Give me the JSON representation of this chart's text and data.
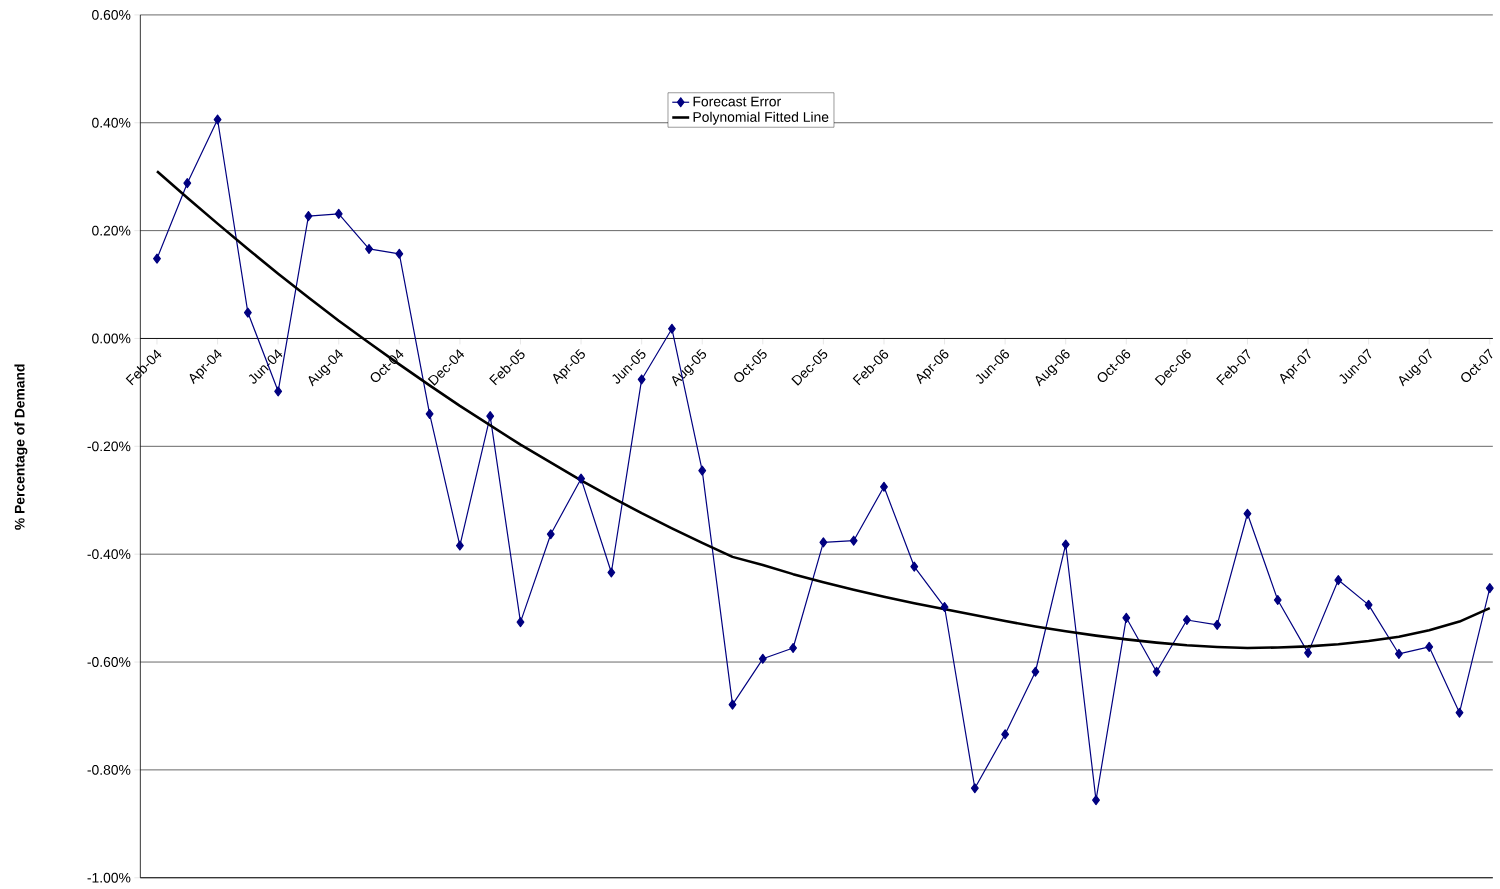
{
  "chart_data": {
    "type": "line",
    "ylabel": "% Percentage of Demand",
    "categories": [
      "Feb-04",
      null,
      "Apr-04",
      null,
      "Jun-04",
      null,
      "Aug-04",
      null,
      "Oct-04",
      null,
      "Dec-04",
      null,
      "Feb-05",
      null,
      "Apr-05",
      null,
      "Jun-05",
      null,
      "Aug-05",
      null,
      "Oct-05",
      null,
      "Dec-05",
      null,
      "Feb-06",
      null,
      "Apr-06",
      null,
      "Jun-06",
      null,
      "Aug-06",
      null,
      "Oct-06",
      null,
      "Dec-06",
      null,
      "Feb-07",
      null,
      "Apr-07",
      null,
      "Jun-07",
      null,
      "Aug-07",
      null,
      "Oct-07"
    ],
    "series": [
      {
        "name": "Forecast Error",
        "color": "#000080",
        "marker": "diamond",
        "values": [
          0.148,
          0.288,
          0.406,
          0.048,
          -0.098,
          0.227,
          0.231,
          0.166,
          0.157,
          -0.14,
          -0.384,
          -0.144,
          -0.526,
          -0.363,
          -0.26,
          -0.434,
          -0.076,
          0.018,
          -0.245,
          -0.679,
          -0.594,
          -0.574,
          -0.378,
          -0.375,
          -0.275,
          -0.423,
          -0.498,
          -0.834,
          -0.734,
          -0.618,
          -0.382,
          -0.856,
          -0.518,
          -0.618,
          -0.522,
          -0.531,
          -0.325,
          -0.485,
          -0.583,
          -0.448,
          -0.494,
          -0.585,
          -0.572,
          -0.694,
          -0.463
        ]
      },
      {
        "name": "Polynomial Fitted Line",
        "color": "#000000",
        "marker": "none",
        "values": [
          0.31,
          0.261,
          0.213,
          0.166,
          0.12,
          0.076,
          0.033,
          -0.008,
          -0.048,
          -0.087,
          -0.125,
          -0.161,
          -0.197,
          -0.23,
          -0.263,
          -0.294,
          -0.324,
          -0.352,
          -0.379,
          -0.405,
          -0.42,
          -0.437,
          -0.452,
          -0.466,
          -0.479,
          -0.491,
          -0.502,
          -0.513,
          -0.524,
          -0.534,
          -0.543,
          -0.551,
          -0.558,
          -0.564,
          -0.569,
          -0.572,
          -0.574,
          -0.573,
          -0.571,
          -0.567,
          -0.561,
          -0.553,
          -0.541,
          -0.525,
          -0.5
        ]
      }
    ],
    "ylim": [
      -1.0,
      0.6
    ],
    "yticks": [
      {
        "value": -1.0,
        "label": "-1.00%"
      },
      {
        "value": -0.8,
        "label": "-0.80%"
      },
      {
        "value": -0.6,
        "label": "-0.60%"
      },
      {
        "value": -0.4,
        "label": "-0.40%"
      },
      {
        "value": -0.2,
        "label": "-0.20%"
      },
      {
        "value": 0.0,
        "label": "0.00%"
      },
      {
        "value": 0.2,
        "label": "0.20%"
      },
      {
        "value": 0.4,
        "label": "0.40%"
      },
      {
        "value": 0.6,
        "label": "0.60%"
      }
    ],
    "grid": "y",
    "legend": "top",
    "line_style": "solid"
  }
}
